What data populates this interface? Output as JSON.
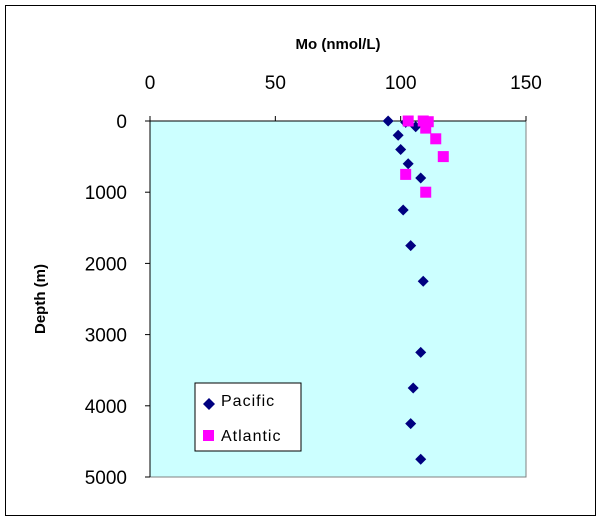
{
  "chart_data": {
    "type": "scatter",
    "title": "",
    "xlabel": "Mo (nmol/L)",
    "ylabel": "Depth (m)",
    "xlim": [
      0,
      150
    ],
    "ylim": [
      0,
      5000
    ],
    "y_inverted": true,
    "x_axis_position": "top",
    "x_ticks": [
      "0",
      "50",
      "100",
      "150"
    ],
    "y_ticks": [
      "0",
      "1000",
      "2000",
      "3000",
      "4000",
      "5000"
    ],
    "grid": false,
    "plot_background": "#ccffff",
    "legend_position": "bottom-left",
    "series": [
      {
        "name": "Pacific",
        "marker": "diamond",
        "color": "#000080",
        "points": [
          {
            "x": 95,
            "y": 0
          },
          {
            "x": 102,
            "y": 20
          },
          {
            "x": 106,
            "y": 80
          },
          {
            "x": 99,
            "y": 200
          },
          {
            "x": 100,
            "y": 400
          },
          {
            "x": 103,
            "y": 600
          },
          {
            "x": 108,
            "y": 800
          },
          {
            "x": 101,
            "y": 1250
          },
          {
            "x": 104,
            "y": 1750
          },
          {
            "x": 109,
            "y": 2250
          },
          {
            "x": 108,
            "y": 3250
          },
          {
            "x": 105,
            "y": 3750
          },
          {
            "x": 104,
            "y": 4250
          },
          {
            "x": 108,
            "y": 4750
          }
        ]
      },
      {
        "name": "Atlantic",
        "marker": "square",
        "color": "#ff00ff",
        "points": [
          {
            "x": 103,
            "y": 0
          },
          {
            "x": 109,
            "y": 0
          },
          {
            "x": 111,
            "y": 10
          },
          {
            "x": 110,
            "y": 100
          },
          {
            "x": 114,
            "y": 250
          },
          {
            "x": 117,
            "y": 500
          },
          {
            "x": 102,
            "y": 750
          },
          {
            "x": 110,
            "y": 1000
          }
        ]
      }
    ]
  }
}
